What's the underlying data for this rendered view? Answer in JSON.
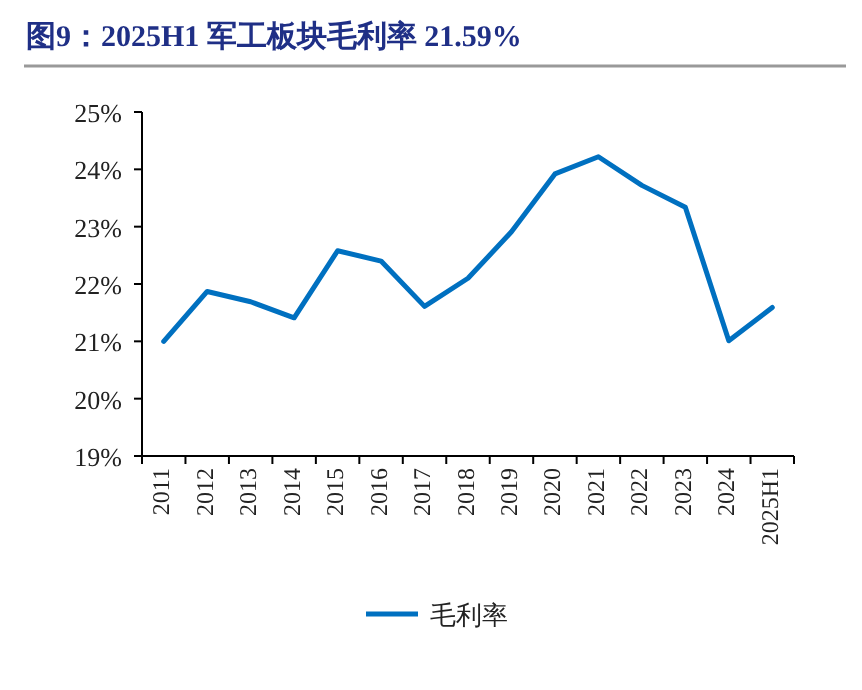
{
  "chart_data": {
    "type": "line",
    "title": "图9：2025H1 军工板块毛利率 21.59%",
    "categories": [
      "2011",
      "2012",
      "2013",
      "2014",
      "2015",
      "2016",
      "2017",
      "2018",
      "2019",
      "2020",
      "2021",
      "2022",
      "2023",
      "2024",
      "2025H1"
    ],
    "series": [
      {
        "name": "毛利率",
        "color": "#0070c0",
        "values": [
          21.0,
          21.87,
          21.69,
          21.41,
          22.58,
          22.4,
          21.61,
          22.1,
          22.91,
          23.92,
          24.22,
          23.72,
          23.34,
          21.01,
          21.59
        ]
      }
    ],
    "ylim": [
      19,
      25
    ],
    "yticks": [
      {
        "value": 19,
        "label": "19%"
      },
      {
        "value": 20,
        "label": "20%"
      },
      {
        "value": 21,
        "label": "21%"
      },
      {
        "value": 22,
        "label": "22%"
      },
      {
        "value": 23,
        "label": "23%"
      },
      {
        "value": 24,
        "label": "24%"
      },
      {
        "value": 25,
        "label": "25%"
      }
    ],
    "grid": false,
    "legend": "bottom",
    "marker": "none",
    "line_style": "solid"
  }
}
